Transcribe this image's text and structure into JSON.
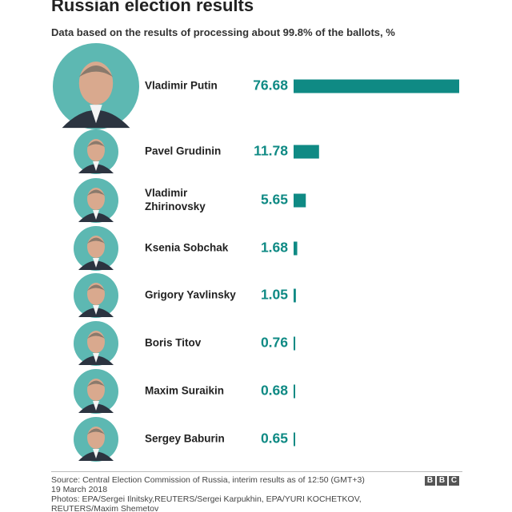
{
  "header": {
    "title": "Russian election results",
    "subtitle": "Data based on the results of processing about 99.8% of the ballots, %"
  },
  "colors": {
    "bar": "#0f8a84",
    "value_text": "#0f8a84",
    "photo_bg": "#5db8b2"
  },
  "chart_data": {
    "type": "bar",
    "orientation": "horizontal",
    "title": "Russian election results",
    "subtitle": "Data based on the results of processing about 99.8% of the ballots, %",
    "categories": [
      "Vladimir Putin",
      "Pavel Grudinin",
      "Vladimir Zhirinovsky",
      "Ksenia Sobchak",
      "Grigory Yavlinsky",
      "Boris Titov",
      "Maxim Suraikin",
      "Sergey Baburin"
    ],
    "label_lines": [
      [
        "Vladimir Putin"
      ],
      [
        "Pavel Grudinin"
      ],
      [
        "Vladimir",
        "Zhirinovsky"
      ],
      [
        "Ksenia Sobchak"
      ],
      [
        "Grigory Yavlinsky"
      ],
      [
        "Boris Titov"
      ],
      [
        "Maxim Suraikin"
      ],
      [
        "Sergey Baburin"
      ]
    ],
    "value_labels": [
      "76.68",
      "11.78",
      "5.65",
      "1.68",
      "1.05",
      "0.76",
      "0.68",
      "0.65"
    ],
    "values": [
      76.68,
      11.78,
      5.65,
      1.68,
      1.05,
      0.76,
      0.68,
      0.65
    ],
    "xlim": [
      0,
      76.68
    ],
    "grid": false,
    "legend": "none"
  },
  "footer": {
    "source": "Source: Central Election Commission of Russia, interim results as of 12:50 (GMT+3)",
    "date": "19 March 2018",
    "photos_line1": "Photos: EPA/Sergei Ilnitsky,REUTERS/Sergei Karpukhin, EPA/YURI KOCHETKOV,",
    "photos_line2": "REUTERS/Maxim Shemetov",
    "logo_letters": [
      "B",
      "B",
      "C"
    ]
  }
}
